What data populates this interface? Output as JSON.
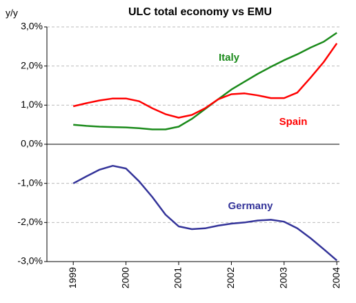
{
  "chart_data": {
    "type": "line",
    "title": "ULC total economy vs EMU",
    "y_axis_label": "y/y",
    "x": [
      1999,
      1999.25,
      1999.5,
      1999.75,
      2000,
      2000.25,
      2000.5,
      2000.75,
      2001,
      2001.25,
      2001.5,
      2001.75,
      2002,
      2002.25,
      2002.5,
      2002.75,
      2003,
      2003.25,
      2003.5,
      2003.75,
      2004
    ],
    "series": [
      {
        "name": "Italy",
        "color": "#1a8a1a",
        "values": [
          0.5,
          0.47,
          0.45,
          0.44,
          0.43,
          0.41,
          0.38,
          0.38,
          0.45,
          0.65,
          0.9,
          1.15,
          1.4,
          1.6,
          1.8,
          1.98,
          2.15,
          2.3,
          2.47,
          2.62,
          2.85
        ]
      },
      {
        "name": "Spain",
        "color": "#ff0000",
        "values": [
          0.97,
          1.05,
          1.12,
          1.17,
          1.17,
          1.1,
          0.92,
          0.77,
          0.68,
          0.75,
          0.92,
          1.15,
          1.28,
          1.3,
          1.25,
          1.18,
          1.18,
          1.32,
          1.7,
          2.1,
          2.58
        ]
      },
      {
        "name": "Germany",
        "color": "#333399",
        "values": [
          -1.0,
          -0.82,
          -0.65,
          -0.55,
          -0.62,
          -0.95,
          -1.35,
          -1.8,
          -2.1,
          -2.17,
          -2.15,
          -2.08,
          -2.03,
          -2.0,
          -1.95,
          -1.93,
          -1.98,
          -2.15,
          -2.4,
          -2.68,
          -2.97
        ]
      }
    ],
    "xlim": [
      1998.5,
      2004.05
    ],
    "xticks": [
      1999,
      2000,
      2001,
      2002,
      2003,
      2004
    ],
    "ylim": [
      -3,
      3
    ],
    "yticks": [
      {
        "value": 3,
        "label": "3,0%"
      },
      {
        "value": 2,
        "label": "2,0%"
      },
      {
        "value": 1,
        "label": "1,0%"
      },
      {
        "value": 0,
        "label": "0,0%"
      },
      {
        "value": -1,
        "label": "-1,0%"
      },
      {
        "value": -2,
        "label": "-2,0%"
      },
      {
        "value": -3,
        "label": "-3,0%"
      }
    ],
    "grid": true
  }
}
